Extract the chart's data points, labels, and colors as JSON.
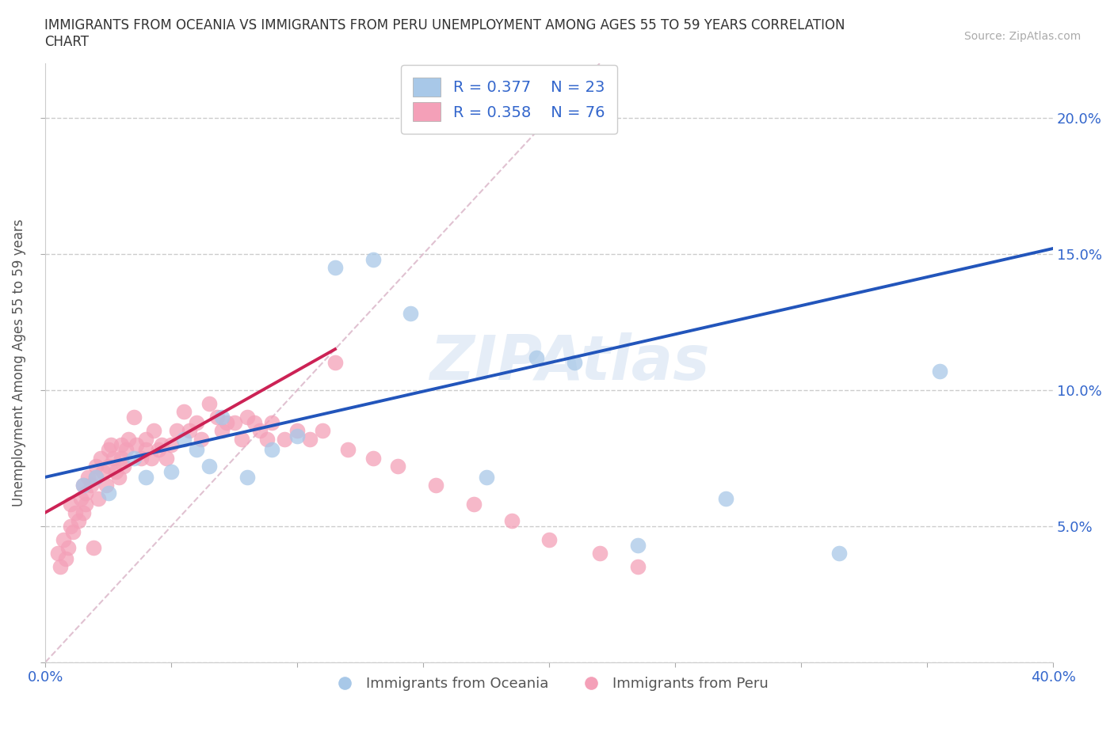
{
  "title": "IMMIGRANTS FROM OCEANIA VS IMMIGRANTS FROM PERU UNEMPLOYMENT AMONG AGES 55 TO 59 YEARS CORRELATION\nCHART",
  "source": "Source: ZipAtlas.com",
  "ylabel": "Unemployment Among Ages 55 to 59 years",
  "xlim": [
    0.0,
    0.4
  ],
  "ylim": [
    0.0,
    0.22
  ],
  "xtick_vals": [
    0.0,
    0.05,
    0.1,
    0.15,
    0.2,
    0.25,
    0.3,
    0.35,
    0.4
  ],
  "ytick_vals": [
    0.0,
    0.05,
    0.1,
    0.15,
    0.2
  ],
  "watermark": "ZIPAtlas",
  "oceania_color": "#a8c8e8",
  "peru_color": "#f4a0b8",
  "oceania_R": 0.377,
  "oceania_N": 23,
  "peru_R": 0.358,
  "peru_N": 76,
  "oceania_line_color": "#2255bb",
  "peru_line_color": "#cc2255",
  "diagonal_color": "#ddbbcc",
  "oceania_line_x0": 0.0,
  "oceania_line_y0": 0.068,
  "oceania_line_x1": 0.4,
  "oceania_line_y1": 0.152,
  "peru_line_x0": 0.0,
  "peru_line_y0": 0.055,
  "peru_line_x1": 0.115,
  "peru_line_y1": 0.115,
  "oceania_scatter_x": [
    0.015,
    0.02,
    0.025,
    0.035,
    0.04,
    0.05,
    0.055,
    0.06,
    0.065,
    0.07,
    0.08,
    0.09,
    0.1,
    0.115,
    0.13,
    0.145,
    0.175,
    0.195,
    0.21,
    0.235,
    0.27,
    0.315,
    0.355
  ],
  "oceania_scatter_y": [
    0.065,
    0.068,
    0.062,
    0.075,
    0.068,
    0.07,
    0.082,
    0.078,
    0.072,
    0.09,
    0.068,
    0.078,
    0.083,
    0.145,
    0.148,
    0.128,
    0.068,
    0.112,
    0.11,
    0.043,
    0.06,
    0.04,
    0.107
  ],
  "peru_scatter_x": [
    0.005,
    0.006,
    0.007,
    0.008,
    0.009,
    0.01,
    0.01,
    0.011,
    0.012,
    0.013,
    0.014,
    0.015,
    0.015,
    0.016,
    0.016,
    0.017,
    0.018,
    0.019,
    0.02,
    0.02,
    0.021,
    0.022,
    0.023,
    0.024,
    0.025,
    0.025,
    0.026,
    0.027,
    0.028,
    0.029,
    0.03,
    0.03,
    0.031,
    0.032,
    0.033,
    0.035,
    0.036,
    0.038,
    0.04,
    0.04,
    0.042,
    0.043,
    0.045,
    0.046,
    0.048,
    0.05,
    0.052,
    0.055,
    0.057,
    0.06,
    0.062,
    0.065,
    0.068,
    0.07,
    0.072,
    0.075,
    0.078,
    0.08,
    0.083,
    0.085,
    0.088,
    0.09,
    0.095,
    0.1,
    0.105,
    0.11,
    0.115,
    0.12,
    0.13,
    0.14,
    0.155,
    0.17,
    0.185,
    0.2,
    0.22,
    0.235
  ],
  "peru_scatter_y": [
    0.04,
    0.035,
    0.045,
    0.038,
    0.042,
    0.05,
    0.058,
    0.048,
    0.055,
    0.052,
    0.06,
    0.055,
    0.065,
    0.058,
    0.062,
    0.068,
    0.065,
    0.042,
    0.072,
    0.068,
    0.06,
    0.075,
    0.07,
    0.065,
    0.078,
    0.072,
    0.08,
    0.075,
    0.07,
    0.068,
    0.075,
    0.08,
    0.072,
    0.078,
    0.082,
    0.09,
    0.08,
    0.075,
    0.082,
    0.078,
    0.075,
    0.085,
    0.078,
    0.08,
    0.075,
    0.08,
    0.085,
    0.092,
    0.085,
    0.088,
    0.082,
    0.095,
    0.09,
    0.085,
    0.088,
    0.088,
    0.082,
    0.09,
    0.088,
    0.085,
    0.082,
    0.088,
    0.082,
    0.085,
    0.082,
    0.085,
    0.11,
    0.078,
    0.075,
    0.072,
    0.065,
    0.058,
    0.052,
    0.045,
    0.04,
    0.035
  ]
}
